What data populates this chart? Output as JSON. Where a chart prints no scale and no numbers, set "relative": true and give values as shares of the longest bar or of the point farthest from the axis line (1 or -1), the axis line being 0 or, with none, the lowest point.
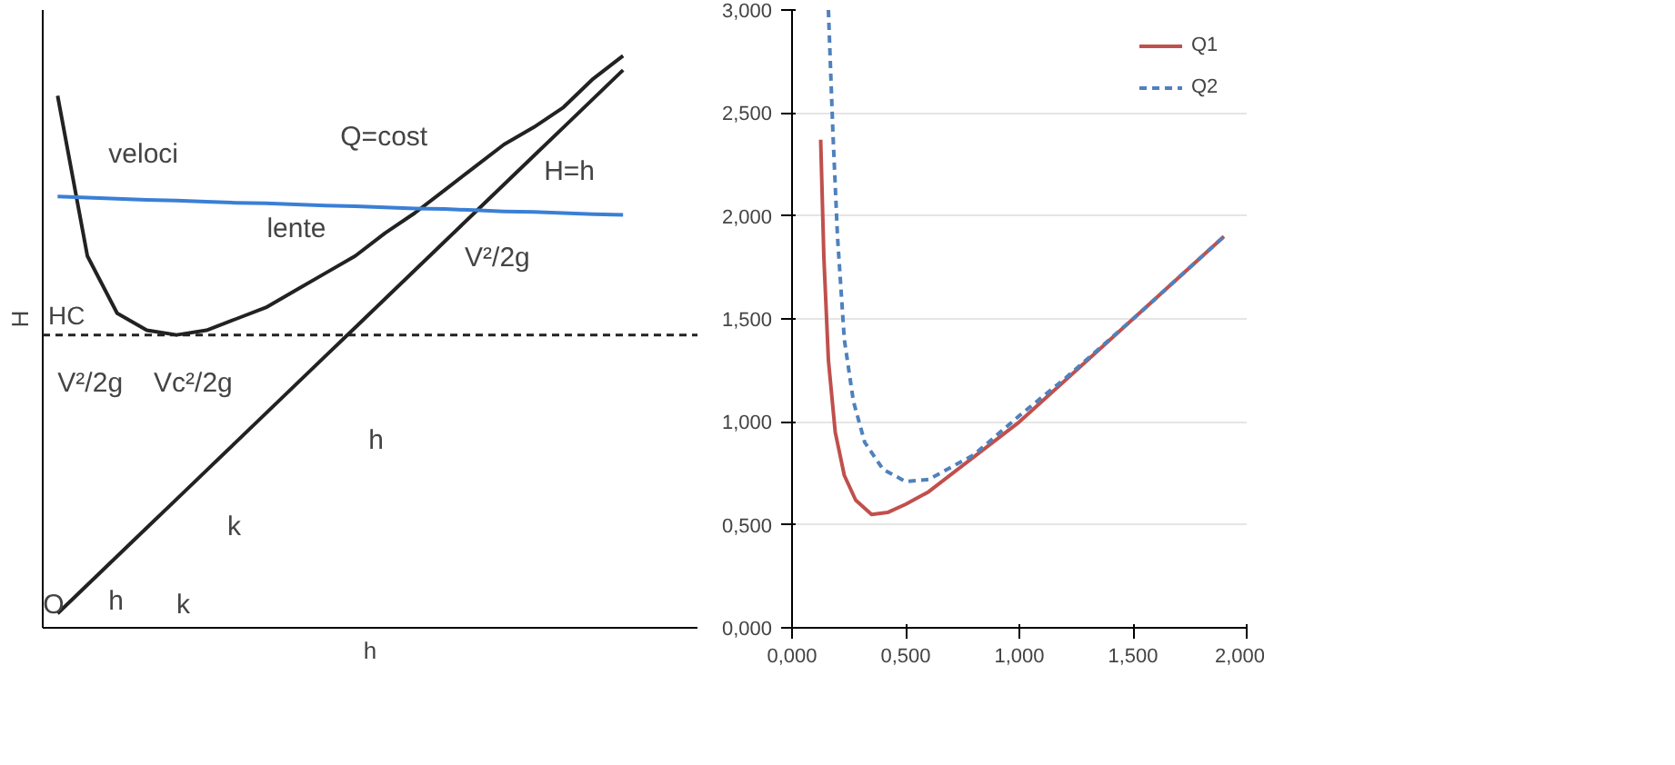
{
  "chart_data": [
    {
      "type": "line",
      "relative": true,
      "xlabel": "h",
      "ylabel": "H",
      "categories": [
        null,
        null,
        null,
        null,
        null,
        null,
        null,
        null,
        null,
        null,
        null,
        null,
        null,
        null,
        null,
        null,
        null,
        null,
        null,
        null
      ],
      "series": [
        {
          "color": "#222222",
          "values": [
            0.93,
            0.65,
            0.55,
            0.52,
            0.512,
            0.52,
            0.54,
            0.56,
            0.59,
            0.62,
            0.65,
            0.69,
            0.725,
            0.765,
            0.805,
            0.845,
            0.875,
            0.91,
            0.96,
            1.0
          ]
        },
        {
          "color": "#222222",
          "values": [
            0.025,
            0.075,
            0.125,
            0.175,
            0.225,
            0.275,
            0.325,
            0.375,
            0.425,
            0.475,
            0.525,
            0.575,
            0.625,
            0.675,
            0.725,
            0.775,
            0.825,
            0.875,
            0.925,
            0.975
          ]
        },
        {
          "color": "#3a7fd5",
          "values": [
            0.754,
            0.752,
            0.75,
            0.748,
            0.747,
            0.745,
            0.743,
            0.742,
            0.74,
            0.738,
            0.737,
            0.735,
            0.733,
            0.732,
            0.73,
            0.728,
            0.727,
            0.725,
            0.723,
            0.722
          ]
        }
      ],
      "ref_lines": [
        {
          "axis": "y",
          "value": 0.512,
          "label": "HC",
          "line_style": "dashed",
          "color": "#222222"
        }
      ],
      "annotations": [
        "veloci",
        "lente",
        "Q=cost",
        "H=h",
        "V²/2g",
        "Vc²/2g",
        "V²/2g",
        "h",
        "h",
        "k",
        "O",
        "k"
      ]
    },
    {
      "type": "line",
      "xlim": [
        0,
        2
      ],
      "ylim": [
        0,
        3
      ],
      "grid": "y",
      "legend": "top right",
      "xticks": [
        {
          "value": 0,
          "label": "0,000"
        },
        {
          "value": 0.5,
          "label": "0,500"
        },
        {
          "value": 1,
          "label": "1,000"
        },
        {
          "value": 1.5,
          "label": "1,500"
        },
        {
          "value": 2,
          "label": "2,000"
        }
      ],
      "yticks": [
        {
          "value": 0,
          "label": "0,000"
        },
        {
          "value": 0.5,
          "label": "0,500"
        },
        {
          "value": 1,
          "label": "1,000"
        },
        {
          "value": 1.5,
          "label": "1,500"
        },
        {
          "value": 2,
          "label": "2,000"
        },
        {
          "value": 2.5,
          "label": "2,500"
        },
        {
          "value": 3,
          "label": "3,000"
        }
      ],
      "series": [
        {
          "name": "Q1",
          "color": "#c0504d",
          "line_style": "solid",
          "x": [
            0.126,
            0.14,
            0.16,
            0.19,
            0.23,
            0.28,
            0.35,
            0.42,
            0.5,
            0.6,
            0.8,
            1.0,
            1.2,
            1.5,
            1.9
          ],
          "values": [
            2.37,
            1.8,
            1.3,
            0.95,
            0.74,
            0.62,
            0.55,
            0.56,
            0.6,
            0.66,
            0.83,
            1.0,
            1.2,
            1.5,
            1.9
          ]
        },
        {
          "name": "Q2",
          "color": "#4f81bd",
          "line_style": "dashed",
          "x": [
            0.16,
            0.18,
            0.2,
            0.23,
            0.27,
            0.32,
            0.4,
            0.5,
            0.6,
            0.8,
            1.0,
            1.2,
            1.5,
            1.9
          ],
          "values": [
            3.0,
            2.4,
            1.9,
            1.4,
            1.1,
            0.9,
            0.77,
            0.71,
            0.72,
            0.84,
            1.03,
            1.21,
            1.5,
            1.9
          ]
        }
      ]
    }
  ]
}
